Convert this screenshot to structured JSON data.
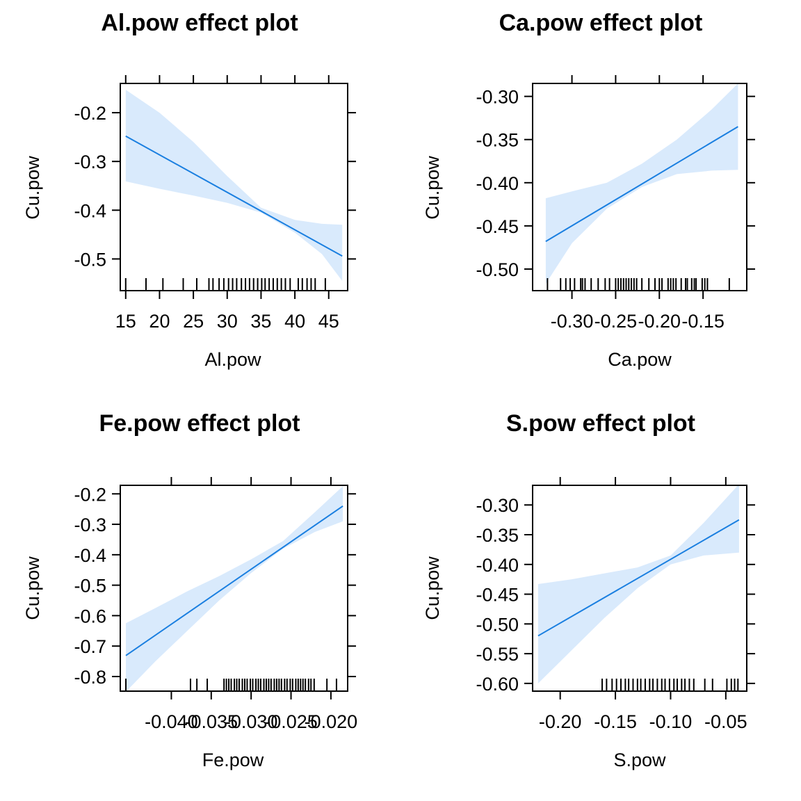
{
  "colors": {
    "band": "#d9eafc",
    "line": "#1a7fe0",
    "frame": "#000000"
  },
  "chart_data": [
    {
      "type": "line",
      "title": "Al.pow effect plot",
      "xlabel": "Al.pow",
      "ylabel": "Cu.pow",
      "xlim": [
        14.2,
        47.8
      ],
      "ylim": [
        -0.565,
        -0.14
      ],
      "xticks": [
        15,
        20,
        25,
        30,
        35,
        40,
        45
      ],
      "xtick_labels": [
        "15",
        "20",
        "25",
        "30",
        "35",
        "40",
        "45"
      ],
      "yticks": [
        -0.2,
        -0.3,
        -0.4,
        -0.5
      ],
      "ytick_labels": [
        "-0.2",
        "-0.3",
        "-0.4",
        "-0.5"
      ],
      "top_ticks": [
        15,
        20,
        25,
        30,
        35,
        40,
        45
      ],
      "right_ticks": [
        -0.2,
        -0.3,
        -0.4,
        -0.5
      ],
      "fit": {
        "x": [
          15,
          47
        ],
        "y": [
          -0.248,
          -0.494
        ]
      },
      "band": {
        "x": [
          15,
          20,
          25,
          30,
          35,
          40,
          44,
          47
        ],
        "lower": [
          -0.341,
          -0.356,
          -0.37,
          -0.385,
          -0.405,
          -0.446,
          -0.49,
          -0.545
        ],
        "upper": [
          -0.153,
          -0.2,
          -0.26,
          -0.33,
          -0.395,
          -0.42,
          -0.428,
          -0.43
        ]
      },
      "rug": [
        15,
        18,
        20.5,
        23.5,
        25.5,
        27.3,
        27.9,
        28.8,
        29.5,
        30.2,
        30.8,
        31.4,
        32.1,
        32.7,
        33.3,
        33.9,
        34.5,
        35.1,
        35.6,
        36.2,
        36.8,
        37.4,
        38,
        38.6,
        39.3,
        40.5,
        41.1,
        41.8,
        42.4,
        43,
        44.5
      ]
    },
    {
      "type": "line",
      "title": "Ca.pow effect plot",
      "xlabel": "Ca.pow",
      "ylabel": "Cu.pow",
      "xlim": [
        -0.345,
        -0.1
      ],
      "ylim": [
        -0.525,
        -0.285
      ],
      "xticks": [
        -0.3,
        -0.25,
        -0.2,
        -0.15
      ],
      "xtick_labels": [
        "-0.30",
        "-0.25",
        "-0.20",
        "-0.15"
      ],
      "yticks": [
        -0.3,
        -0.35,
        -0.4,
        -0.45,
        -0.5
      ],
      "ytick_labels": [
        "-0.30",
        "-0.35",
        "-0.40",
        "-0.45",
        "-0.50"
      ],
      "top_ticks": [
        -0.3,
        -0.25,
        -0.2,
        -0.15
      ],
      "right_ticks": [
        -0.3,
        -0.35,
        -0.4,
        -0.45,
        -0.5
      ],
      "fit": {
        "x": [
          -0.33,
          -0.11
        ],
        "y": [
          -0.468,
          -0.335
        ]
      },
      "band": {
        "x": [
          -0.33,
          -0.3,
          -0.26,
          -0.22,
          -0.18,
          -0.14,
          -0.11
        ],
        "lower": [
          -0.517,
          -0.47,
          -0.43,
          -0.405,
          -0.39,
          -0.386,
          -0.385
        ],
        "upper": [
          -0.418,
          -0.41,
          -0.4,
          -0.378,
          -0.35,
          -0.315,
          -0.285
        ]
      },
      "rug": [
        -0.328,
        -0.313,
        -0.307,
        -0.302,
        -0.297,
        -0.29,
        -0.288,
        -0.285,
        -0.278,
        -0.27,
        -0.262,
        -0.257,
        -0.25,
        -0.247,
        -0.244,
        -0.241,
        -0.238,
        -0.235,
        -0.232,
        -0.229,
        -0.226,
        -0.22,
        -0.212,
        -0.205,
        -0.2,
        -0.197,
        -0.19,
        -0.187,
        -0.184,
        -0.181,
        -0.175,
        -0.17,
        -0.168,
        -0.163,
        -0.16,
        -0.158,
        -0.151,
        -0.148,
        -0.145,
        -0.12
      ]
    },
    {
      "type": "line",
      "title": "Fe.pow effect plot",
      "xlabel": "Fe.pow",
      "ylabel": "Cu.pow",
      "xlim": [
        -0.0464,
        -0.0179
      ],
      "ylim": [
        -0.848,
        -0.172
      ],
      "xticks": [
        -0.04,
        -0.035,
        -0.03,
        -0.025,
        -0.02
      ],
      "xtick_labels": [
        "-0.040",
        "-0.035",
        "-0.030",
        "-0.025",
        "-0.020"
      ],
      "yticks": [
        -0.2,
        -0.3,
        -0.4,
        -0.5,
        -0.6,
        -0.7,
        -0.8
      ],
      "ytick_labels": [
        "-0.2",
        "-0.3",
        "-0.4",
        "-0.5",
        "-0.6",
        "-0.7",
        "-0.8"
      ],
      "top_ticks": [
        -0.04,
        -0.035,
        -0.03,
        -0.025,
        -0.02
      ],
      "right_ticks": [
        -0.2,
        -0.3,
        -0.4,
        -0.5,
        -0.6,
        -0.7,
        -0.8
      ],
      "fit": {
        "x": [
          -0.0457,
          -0.0185
        ],
        "y": [
          -0.731,
          -0.24
        ]
      },
      "band": {
        "x": [
          -0.0457,
          -0.042,
          -0.038,
          -0.034,
          -0.03,
          -0.026,
          -0.022,
          -0.0185
        ],
        "lower": [
          -0.85,
          -0.75,
          -0.65,
          -0.55,
          -0.46,
          -0.38,
          -0.325,
          -0.29
        ],
        "upper": [
          -0.625,
          -0.575,
          -0.52,
          -0.47,
          -0.415,
          -0.355,
          -0.26,
          -0.175
        ]
      },
      "rug": [
        -0.0457,
        -0.0376,
        -0.0368,
        -0.0355,
        -0.0334,
        -0.0331,
        -0.0328,
        -0.0325,
        -0.0321,
        -0.0318,
        -0.0315,
        -0.0311,
        -0.0308,
        -0.0305,
        -0.0301,
        -0.0298,
        -0.0294,
        -0.0291,
        -0.0288,
        -0.0284,
        -0.0281,
        -0.0278,
        -0.0275,
        -0.0271,
        -0.0268,
        -0.0265,
        -0.0262,
        -0.0258,
        -0.0255,
        -0.0251,
        -0.0248,
        -0.0244,
        -0.0241,
        -0.0238,
        -0.0235,
        -0.0232,
        -0.0228,
        -0.0225,
        -0.0221,
        -0.0205,
        -0.0193
      ]
    },
    {
      "type": "line",
      "title": "S.pow effect plot",
      "xlabel": "S.pow",
      "ylabel": "Cu.pow",
      "xlim": [
        -0.225,
        -0.031
      ],
      "ylim": [
        -0.613,
        -0.267
      ],
      "xticks": [
        -0.2,
        -0.15,
        -0.1,
        -0.05
      ],
      "xtick_labels": [
        "-0.20",
        "-0.15",
        "-0.10",
        "-0.05"
      ],
      "yticks": [
        -0.3,
        -0.35,
        -0.4,
        -0.45,
        -0.5,
        -0.55,
        -0.6
      ],
      "ytick_labels": [
        "-0.30",
        "-0.35",
        "-0.40",
        "-0.45",
        "-0.50",
        "-0.55",
        "-0.60"
      ],
      "top_ticks": [
        -0.2,
        -0.15,
        -0.1,
        -0.05
      ],
      "right_ticks": [
        -0.3,
        -0.35,
        -0.4,
        -0.45,
        -0.5,
        -0.55,
        -0.6
      ],
      "fit": {
        "x": [
          -0.22,
          -0.038
        ],
        "y": [
          -0.52,
          -0.325
        ]
      },
      "band": {
        "x": [
          -0.22,
          -0.19,
          -0.16,
          -0.13,
          -0.1,
          -0.07,
          -0.038
        ],
        "lower": [
          -0.6,
          -0.545,
          -0.49,
          -0.44,
          -0.4,
          -0.385,
          -0.38
        ],
        "upper": [
          -0.433,
          -0.425,
          -0.415,
          -0.405,
          -0.385,
          -0.33,
          -0.265
        ]
      },
      "rug": [
        -0.162,
        -0.158,
        -0.153,
        -0.149,
        -0.145,
        -0.141,
        -0.138,
        -0.134,
        -0.13,
        -0.127,
        -0.123,
        -0.119,
        -0.116,
        -0.112,
        -0.108,
        -0.105,
        -0.101,
        -0.097,
        -0.094,
        -0.09,
        -0.087,
        -0.083,
        -0.079,
        -0.069,
        -0.062,
        -0.049,
        -0.045,
        -0.042,
        -0.039
      ]
    }
  ]
}
